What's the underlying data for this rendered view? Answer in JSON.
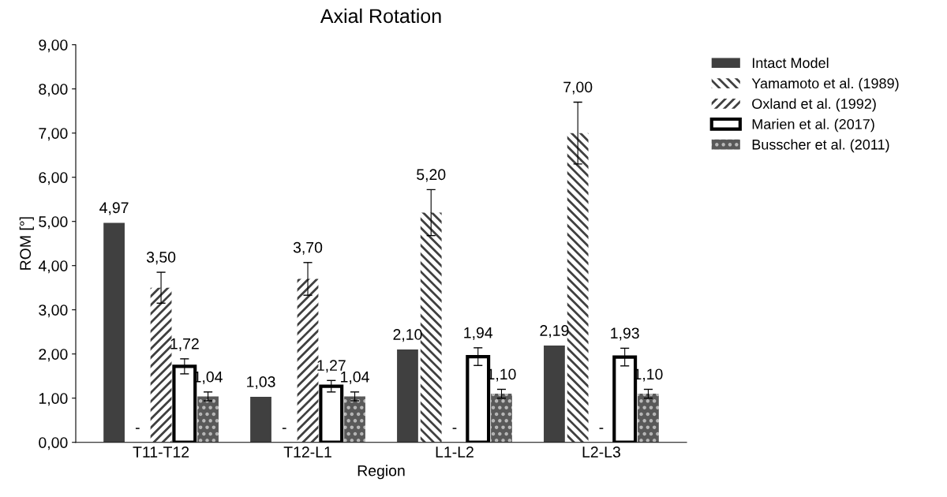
{
  "chart_data": {
    "type": "bar",
    "title": "Axial Rotation",
    "xlabel": "Region",
    "ylabel": "ROM [°]",
    "categories": [
      "T11-T12",
      "T12-L1",
      "L1-L2",
      "L2-L3"
    ],
    "series": [
      {
        "name": "Intact Model",
        "color": "#404040",
        "values": [
          4.97,
          1.03,
          2.1,
          2.19
        ],
        "value_labels": [
          "4,97",
          "1,03",
          "2,10",
          "2,19"
        ]
      },
      {
        "name": "Yamamoto et al. (1989)",
        "color": "#404040",
        "values": [
          null,
          null,
          5.2,
          7.0
        ],
        "errors": [
          null,
          null,
          0.52,
          0.7
        ],
        "value_labels": [
          "-",
          "-",
          "5,20",
          "7,00"
        ]
      },
      {
        "name": "Oxland et al. (1992)",
        "color": "#404040",
        "values": [
          3.5,
          3.7,
          null,
          null
        ],
        "errors": [
          0.35,
          0.37,
          null,
          null
        ],
        "value_labels": [
          "3,50",
          "3,70",
          "-",
          "-"
        ]
      },
      {
        "name": "Marien et al. (2017)",
        "color": "#000000",
        "values": [
          1.72,
          1.27,
          1.94,
          1.93
        ],
        "errors": [
          0.17,
          0.13,
          0.2,
          0.2
        ],
        "value_labels": [
          "1,72",
          "1,27",
          "1,94",
          "1,93"
        ]
      },
      {
        "name": "Busscher et al. (2011)",
        "color": "#595959",
        "values": [
          1.04,
          1.04,
          1.1,
          1.1
        ],
        "errors": [
          0.1,
          0.1,
          0.1,
          0.1
        ],
        "value_labels": [
          "1,04",
          "1,04",
          "1,10",
          "1,10"
        ]
      }
    ],
    "ylim": [
      0,
      9
    ],
    "yticks": [
      {
        "value": 0,
        "label": "0,00"
      },
      {
        "value": 1,
        "label": "1,00"
      },
      {
        "value": 2,
        "label": "2,00"
      },
      {
        "value": 3,
        "label": "3,00"
      },
      {
        "value": 4,
        "label": "4,00"
      },
      {
        "value": 5,
        "label": "5,00"
      },
      {
        "value": 6,
        "label": "6,00"
      },
      {
        "value": 7,
        "label": "7,00"
      },
      {
        "value": 8,
        "label": "8,00"
      },
      {
        "value": 9,
        "label": "9,00"
      }
    ],
    "grid": false,
    "legend": "right"
  }
}
